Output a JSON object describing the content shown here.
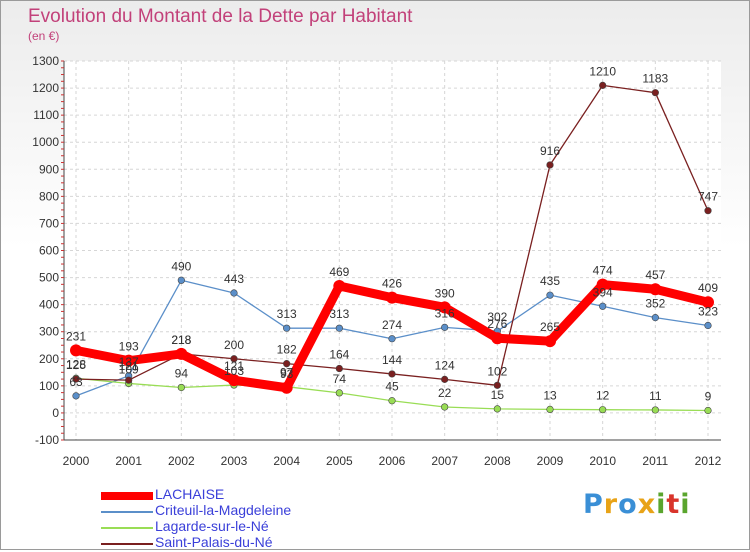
{
  "header": {
    "title": "Evolution du Montant de la Dette par Habitant",
    "subtitle": "(en €)"
  },
  "logo": {
    "letters": [
      "P",
      "r",
      "o",
      "x",
      "i",
      "t",
      "i"
    ],
    "colors": [
      "#3a8fd6",
      "#e8a317",
      "#3a8fd6",
      "#e8a317",
      "#5aa52e",
      "#d9342b",
      "#5aa52e"
    ]
  },
  "chart_data": {
    "type": "line",
    "x": [
      "2000",
      "2001",
      "2002",
      "2003",
      "2004",
      "2005",
      "2006",
      "2007",
      "2008",
      "2009",
      "2010",
      "2011",
      "2012"
    ],
    "ylim": [
      -100,
      1300
    ],
    "yticks": [
      -100,
      0,
      100,
      200,
      300,
      400,
      500,
      600,
      700,
      800,
      900,
      1000,
      1100,
      1200,
      1300
    ],
    "grid": true,
    "legend_position": "bottom-left",
    "series": [
      {
        "name": "LACHAISE",
        "color": "#ff0000",
        "values": [
          231,
          193,
          218,
          121,
          93,
          469,
          426,
          390,
          276,
          265,
          474,
          457,
          409
        ]
      },
      {
        "name": "Criteuil-la-Magdeleine",
        "color": "#5b8fc9",
        "values": [
          63,
          137,
          490,
          443,
          313,
          313,
          274,
          316,
          302,
          435,
          394,
          352,
          323
        ]
      },
      {
        "name": "Lagarde-sur-le-Né",
        "color": "#99dd55",
        "values": [
          128,
          109,
          94,
          103,
          97,
          74,
          45,
          22,
          15,
          13,
          12,
          11,
          9
        ]
      },
      {
        "name": "Saint-Palais-du-Né",
        "color": "#7a2020",
        "values": [
          125,
          121,
          218,
          200,
          182,
          164,
          144,
          124,
          102,
          916,
          1210,
          1183,
          747
        ]
      }
    ]
  }
}
